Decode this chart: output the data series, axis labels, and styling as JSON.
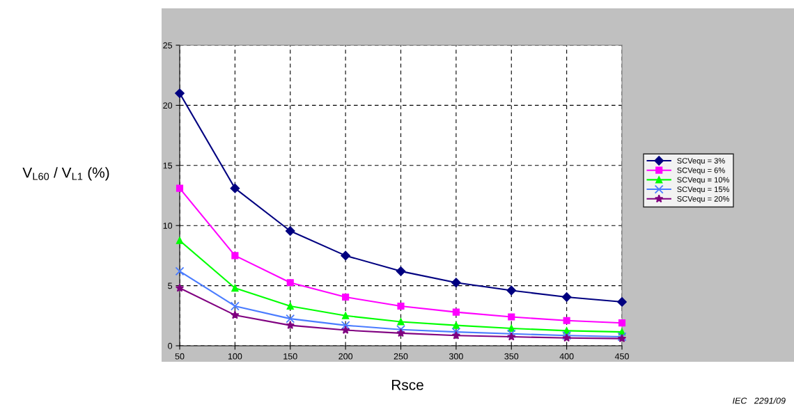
{
  "chart_data": {
    "type": "line",
    "xlabel": "Rsce",
    "ylabel": "V$_{L60}$ / V$_{L1}$ (%)",
    "x": [
      50,
      100,
      150,
      200,
      250,
      300,
      350,
      400,
      450
    ],
    "xlim": [
      50,
      450
    ],
    "xticks": [
      50,
      100,
      150,
      200,
      250,
      300,
      350,
      400,
      450
    ],
    "ylim": [
      0,
      25
    ],
    "yticks": [
      0,
      5,
      10,
      15,
      20,
      25
    ],
    "grid": true,
    "line_style": "solid",
    "legend": "right",
    "annotations": [
      "IEC   2291/09"
    ],
    "series": [
      {
        "name": "SCVequ = 3%",
        "color": "#000080",
        "marker": "diamond",
        "values": [
          21.0,
          13.1,
          9.55,
          7.5,
          6.2,
          5.25,
          4.6,
          4.05,
          3.65
        ]
      },
      {
        "name": "SCVequ = 6%",
        "color": "#ff00ff",
        "marker": "square",
        "values": [
          13.1,
          7.5,
          5.25,
          4.05,
          3.3,
          2.8,
          2.4,
          2.1,
          1.9
        ]
      },
      {
        "name": "SCVequ = 10%",
        "color": "#00ff00",
        "marker": "triangle",
        "values": [
          8.75,
          4.8,
          3.3,
          2.5,
          2.0,
          1.7,
          1.45,
          1.25,
          1.15
        ]
      },
      {
        "name": "SCVequ = 15%",
        "color": "#4a7cff",
        "marker": "cross",
        "values": [
          6.2,
          3.3,
          2.25,
          1.7,
          1.35,
          1.15,
          1.0,
          0.85,
          0.75
        ]
      },
      {
        "name": "SCVequ = 20%",
        "color": "#800080",
        "marker": "star",
        "values": [
          4.8,
          2.55,
          1.7,
          1.3,
          1.05,
          0.85,
          0.75,
          0.65,
          0.6
        ]
      }
    ]
  }
}
